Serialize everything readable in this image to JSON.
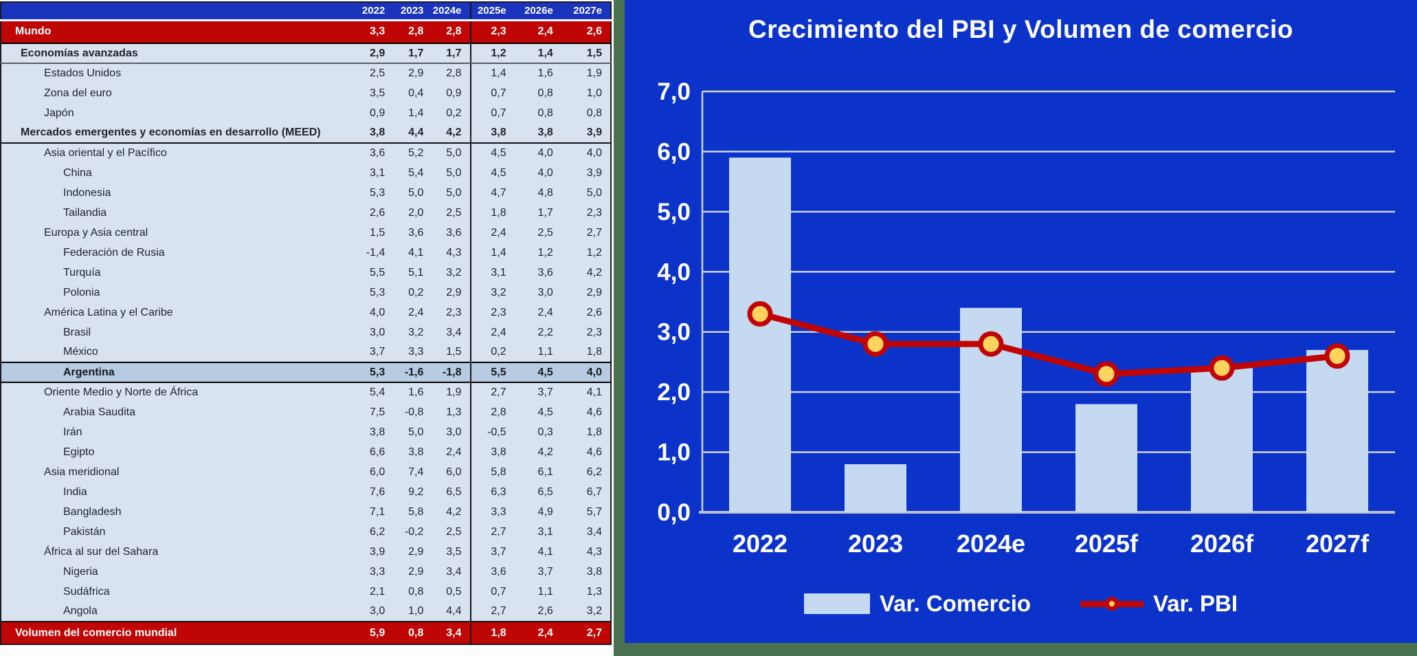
{
  "colors": {
    "panel_blue": "#0b33c9",
    "table_header_blue": "#1b34bd",
    "highlight_red": "#c00505",
    "bar_fill": "#c5d9f1",
    "marker_fill": "#ffd45e",
    "frame_green": "#4a7150",
    "row_bg": "#d9e3f0",
    "argentina_bg": "#b7cbe2",
    "grid_line": "#ccd3dc"
  },
  "left_table": {
    "columns": [
      "2022",
      "2023",
      "2024e",
      "2025e",
      "2026e",
      "2027e"
    ],
    "rows": [
      {
        "label": "Mundo",
        "indent": 0,
        "style": "red_main",
        "values": [
          "3,3",
          "2,8",
          "2,8",
          "2,3",
          "2,4",
          "2,6"
        ]
      },
      {
        "label": "Economías avanzadas",
        "indent": 1,
        "style": "section_a",
        "values": [
          "2,9",
          "1,7",
          "1,7",
          "1,2",
          "1,4",
          "1,5"
        ]
      },
      {
        "label": "Estados Unidos",
        "indent": 2,
        "style": "normal",
        "values": [
          "2,5",
          "2,9",
          "2,8",
          "1,4",
          "1,6",
          "1,9"
        ]
      },
      {
        "label": "Zona del euro",
        "indent": 2,
        "style": "normal",
        "values": [
          "3,5",
          "0,4",
          "0,9",
          "0,7",
          "0,8",
          "1,0"
        ]
      },
      {
        "label": "Japón",
        "indent": 2,
        "style": "normal",
        "values": [
          "0,9",
          "1,4",
          "0,2",
          "0,7",
          "0,8",
          "0,8"
        ]
      },
      {
        "label": "Mercados emergentes y economías en desarrollo (MEED)",
        "indent": 1,
        "style": "section_b",
        "values": [
          "3,8",
          "4,4",
          "4,2",
          "3,8",
          "3,8",
          "3,9"
        ]
      },
      {
        "label": "Asia oriental y el Pacífico",
        "indent": 2,
        "style": "normal",
        "values": [
          "3,6",
          "5,2",
          "5,0",
          "4,5",
          "4,0",
          "4,0"
        ]
      },
      {
        "label": "China",
        "indent": 3,
        "style": "normal",
        "values": [
          "3,1",
          "5,4",
          "5,0",
          "4,5",
          "4,0",
          "3,9"
        ]
      },
      {
        "label": "Indonesia",
        "indent": 3,
        "style": "normal",
        "values": [
          "5,3",
          "5,0",
          "5,0",
          "4,7",
          "4,8",
          "5,0"
        ]
      },
      {
        "label": "Tailandia",
        "indent": 3,
        "style": "normal",
        "values": [
          "2,6",
          "2,0",
          "2,5",
          "1,8",
          "1,7",
          "2,3"
        ]
      },
      {
        "label": "Europa y Asia central",
        "indent": 2,
        "style": "normal",
        "values": [
          "1,5",
          "3,6",
          "3,6",
          "2,4",
          "2,5",
          "2,7"
        ]
      },
      {
        "label": "Federación de Rusia",
        "indent": 3,
        "style": "normal",
        "values": [
          "-1,4",
          "4,1",
          "4,3",
          "1,4",
          "1,2",
          "1,2"
        ]
      },
      {
        "label": "Turquía",
        "indent": 3,
        "style": "normal",
        "values": [
          "5,5",
          "5,1",
          "3,2",
          "3,1",
          "3,6",
          "4,2"
        ]
      },
      {
        "label": "Polonia",
        "indent": 3,
        "style": "normal",
        "values": [
          "5,3",
          "0,2",
          "2,9",
          "3,2",
          "3,0",
          "2,9"
        ]
      },
      {
        "label": "América Latina y el Caribe",
        "indent": 2,
        "style": "normal",
        "values": [
          "4,0",
          "2,4",
          "2,3",
          "2,3",
          "2,4",
          "2,6"
        ]
      },
      {
        "label": "Brasil",
        "indent": 3,
        "style": "normal",
        "values": [
          "3,0",
          "3,2",
          "3,4",
          "2,4",
          "2,2",
          "2,3"
        ]
      },
      {
        "label": "México",
        "indent": 3,
        "style": "normal",
        "values": [
          "3,7",
          "3,3",
          "1,5",
          "0,2",
          "1,1",
          "1,8"
        ]
      },
      {
        "label": "Argentina",
        "indent": 3,
        "style": "highlight",
        "values": [
          "5,3",
          "-1,6",
          "-1,8",
          "5,5",
          "4,5",
          "4,0"
        ]
      },
      {
        "label": "Oriente Medio y Norte de África",
        "indent": 2,
        "style": "normal",
        "values": [
          "5,4",
          "1,6",
          "1,9",
          "2,7",
          "3,7",
          "4,1"
        ]
      },
      {
        "label": "Arabia Saudita",
        "indent": 3,
        "style": "normal",
        "values": [
          "7,5",
          "-0,8",
          "1,3",
          "2,8",
          "4,5",
          "4,6"
        ]
      },
      {
        "label": "Irán",
        "indent": 3,
        "style": "normal",
        "values": [
          "3,8",
          "5,0",
          "3,0",
          "-0,5",
          "0,3",
          "1,8"
        ]
      },
      {
        "label": "Egipto",
        "indent": 3,
        "style": "normal",
        "values": [
          "6,6",
          "3,8",
          "2,4",
          "3,8",
          "4,2",
          "4,6"
        ]
      },
      {
        "label": "Asia meridional",
        "indent": 2,
        "style": "normal",
        "values": [
          "6,0",
          "7,4",
          "6,0",
          "5,8",
          "6,1",
          "6,2"
        ]
      },
      {
        "label": "India",
        "indent": 3,
        "style": "normal",
        "values": [
          "7,6",
          "9,2",
          "6,5",
          "6,3",
          "6,5",
          "6,7"
        ]
      },
      {
        "label": "Bangladesh",
        "indent": 3,
        "style": "normal",
        "values": [
          "7,1",
          "5,8",
          "4,2",
          "3,3",
          "4,9",
          "5,7"
        ]
      },
      {
        "label": "Pakistán",
        "indent": 3,
        "style": "normal",
        "values": [
          "6,2",
          "-0,2",
          "2,5",
          "2,7",
          "3,1",
          "3,4"
        ]
      },
      {
        "label": "África al sur del Sahara",
        "indent": 2,
        "style": "normal",
        "values": [
          "3,9",
          "2,9",
          "3,5",
          "3,7",
          "4,1",
          "4,3"
        ]
      },
      {
        "label": "Nigeria",
        "indent": 3,
        "style": "normal",
        "values": [
          "3,3",
          "2,9",
          "3,4",
          "3,6",
          "3,7",
          "3,8"
        ]
      },
      {
        "label": "Sudáfrica",
        "indent": 3,
        "style": "normal",
        "values": [
          "2,1",
          "0,8",
          "0,5",
          "0,7",
          "1,1",
          "1,3"
        ]
      },
      {
        "label": "Angola",
        "indent": 3,
        "style": "normal",
        "values": [
          "3,0",
          "1,0",
          "4,4",
          "2,7",
          "2,6",
          "3,2"
        ]
      },
      {
        "label": "Volumen del comercio mundial",
        "indent": 0,
        "style": "red_footer",
        "values": [
          "5,9",
          "0,8",
          "3,4",
          "1,8",
          "2,4",
          "2,7"
        ]
      }
    ]
  },
  "chart_data": {
    "type": "bar",
    "title": "Crecimiento del PBI y Volumen de comercio",
    "categories": [
      "2022",
      "2023",
      "2024e",
      "2025f",
      "2026f",
      "2027f"
    ],
    "series": [
      {
        "name": "Var. Comercio",
        "type": "bar",
        "values": [
          5.9,
          0.8,
          3.4,
          1.8,
          2.4,
          2.7
        ],
        "color": "#c5d9f1"
      },
      {
        "name": "Var. PBI",
        "type": "line",
        "values": [
          3.3,
          2.8,
          2.8,
          2.3,
          2.4,
          2.6
        ],
        "color": "#c00505",
        "marker_fill": "#ffd45e"
      }
    ],
    "xlabel": "",
    "ylabel": "",
    "ylim": [
      0,
      7
    ],
    "ytick_step": 1,
    "ytick_labels": [
      "0,0",
      "1,0",
      "2,0",
      "3,0",
      "4,0",
      "5,0",
      "6,0",
      "7,0"
    ],
    "grid": true,
    "legend_position": "bottom"
  }
}
